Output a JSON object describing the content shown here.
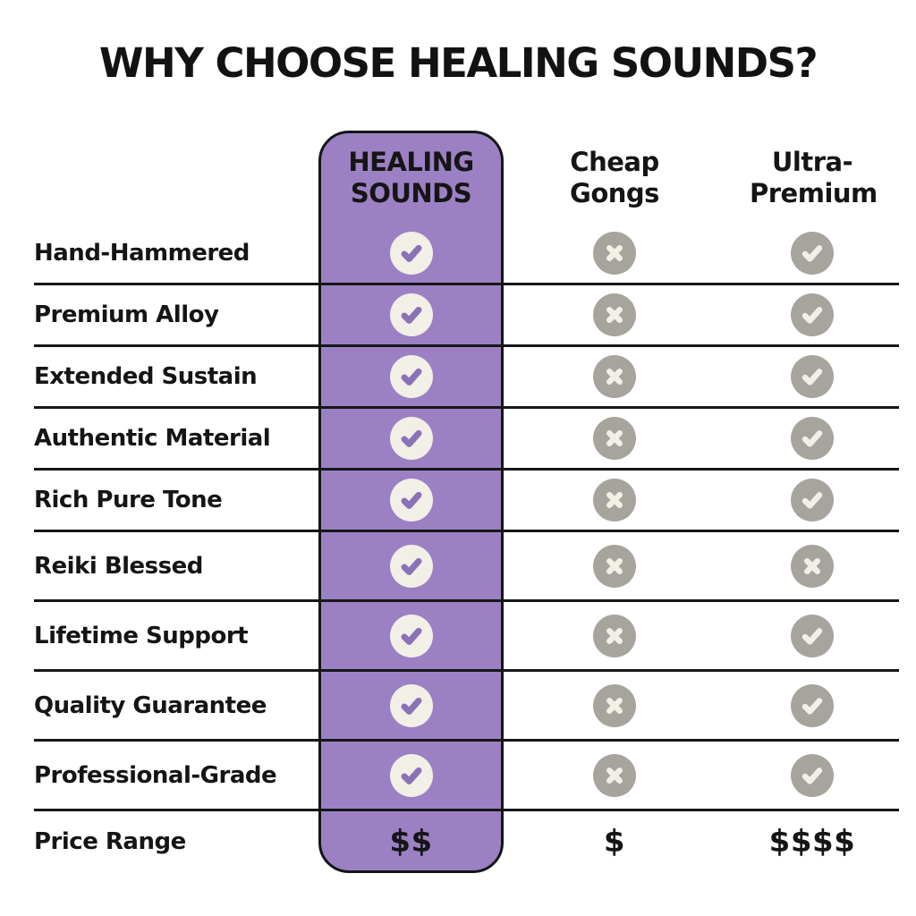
{
  "title": "WHY CHOOSE HEALING SOUNDS?",
  "table": {
    "columns": [
      {
        "label": "HEALING SOUNDS",
        "highlighted": true
      },
      {
        "label": "Cheap Gongs",
        "highlighted": false
      },
      {
        "label": "Ultra-Premium",
        "highlighted": false
      }
    ],
    "rows": [
      {
        "feature": "Hand-Hammered",
        "type": "icons",
        "values": [
          "check",
          "cross",
          "check"
        ]
      },
      {
        "feature": "Premium Alloy",
        "type": "icons",
        "values": [
          "check",
          "cross",
          "check"
        ]
      },
      {
        "feature": "Extended Sustain",
        "type": "icons",
        "values": [
          "check",
          "cross",
          "check"
        ]
      },
      {
        "feature": "Authentic Material",
        "type": "icons",
        "values": [
          "check",
          "cross",
          "check"
        ]
      },
      {
        "feature": "Rich Pure Tone",
        "type": "icons",
        "values": [
          "check",
          "cross",
          "check"
        ]
      },
      {
        "feature": "Reiki Blessed",
        "type": "icons",
        "values": [
          "check",
          "cross",
          "cross"
        ]
      },
      {
        "feature": "Lifetime Support",
        "type": "icons",
        "values": [
          "check",
          "cross",
          "check"
        ]
      },
      {
        "feature": "Quality Guarantee",
        "type": "icons",
        "values": [
          "check",
          "cross",
          "check"
        ]
      },
      {
        "feature": "Professional-Grade",
        "type": "icons",
        "values": [
          "check",
          "cross",
          "check"
        ]
      },
      {
        "feature": "Price Range",
        "type": "price",
        "values": [
          "$$",
          "$",
          "$$$$"
        ]
      }
    ]
  },
  "icons": {
    "check": "check-icon",
    "cross": "cross-icon"
  },
  "colors": {
    "highlight_purple": "#9b81c4",
    "check_circle_cream": "#f2efe7",
    "check_mark_purple": "#8b72b7",
    "neutral_circle_gray": "#a6a49c",
    "grid_line_black": "#171717",
    "text_black": "#151515",
    "background_white": "#ffffff"
  },
  "chart_data": {
    "type": "table",
    "title": "WHY CHOOSE HEALING SOUNDS?",
    "columns": [
      "HEALING SOUNDS",
      "Cheap Gongs",
      "Ultra-Premium"
    ],
    "row_labels": [
      "Hand-Hammered",
      "Premium Alloy",
      "Extended Sustain",
      "Authentic Material",
      "Rich Pure Tone",
      "Reiki Blessed",
      "Lifetime Support",
      "Quality Guarantee",
      "Professional-Grade",
      "Price Range"
    ],
    "cells": [
      [
        "yes",
        "no",
        "yes"
      ],
      [
        "yes",
        "no",
        "yes"
      ],
      [
        "yes",
        "no",
        "yes"
      ],
      [
        "yes",
        "no",
        "yes"
      ],
      [
        "yes",
        "no",
        "yes"
      ],
      [
        "yes",
        "no",
        "no"
      ],
      [
        "yes",
        "no",
        "yes"
      ],
      [
        "yes",
        "no",
        "yes"
      ],
      [
        "yes",
        "no",
        "yes"
      ],
      [
        "$$",
        "$",
        "$$$$"
      ]
    ],
    "legend_position": "none",
    "grid": "horizontal-lines",
    "highlighted_column": "HEALING SOUNDS"
  }
}
